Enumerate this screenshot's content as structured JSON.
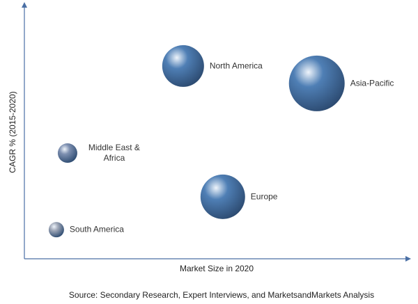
{
  "chart_data": {
    "type": "bubble",
    "x_label": "Market Size in 2020",
    "y_label": "CAGR % (2015-2020)",
    "source": "Source: Secondary Research, Expert Interviews, and MarketsandMarkets Analysis",
    "categories": [
      "North America",
      "Asia-Pacific",
      "Middle East & Africa",
      "Europe",
      "South America"
    ],
    "x": [
      41.2,
      75.9,
      11.2,
      51.5,
      8.3
    ],
    "values": [
      75.5,
      68.7,
      41.4,
      24.3,
      11.4
    ],
    "sizes": [
      30,
      40,
      14,
      32,
      11
    ],
    "colors": [
      "#4f7fb5",
      "#4f7fb5",
      "#7d8fb0",
      "#4f7fb5",
      "#a0a8b8"
    ],
    "xlim": [
      0,
      100
    ],
    "ylim": [
      0,
      100
    ]
  }
}
